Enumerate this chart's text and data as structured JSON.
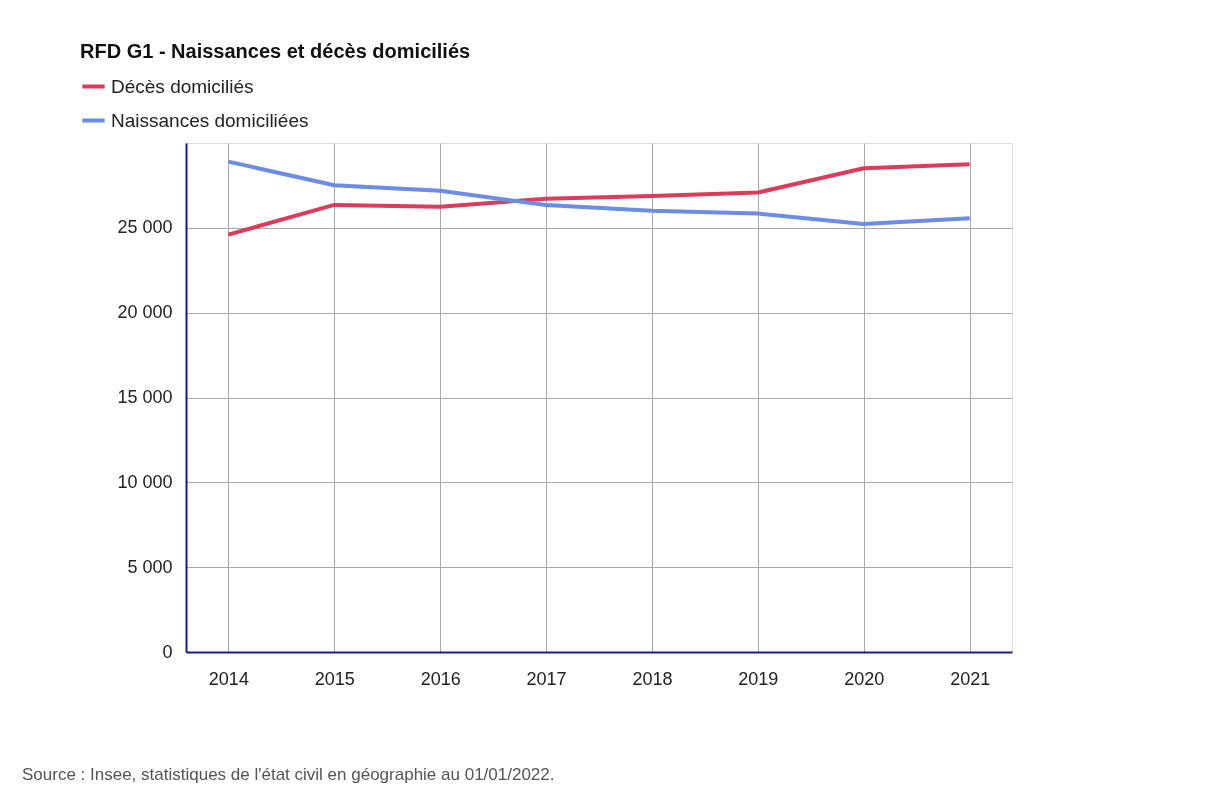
{
  "chart_data": {
    "type": "line",
    "title": "RFD G1 - Naissances et décès domiciliés",
    "categories": [
      "2014",
      "2015",
      "2016",
      "2017",
      "2018",
      "2019",
      "2020",
      "2021"
    ],
    "series": [
      {
        "name": "Décès domiciliés",
        "color": "#dc3c5a",
        "values": [
          24600,
          26350,
          26240,
          26720,
          26880,
          27080,
          28510,
          28750
        ]
      },
      {
        "name": "Naissances domiciliées",
        "color": "#6c8ce6",
        "values": [
          28900,
          27510,
          27180,
          26340,
          26000,
          25840,
          25220,
          25570
        ]
      }
    ],
    "ylim": [
      0,
      30000
    ],
    "yticks": [
      0,
      {
        "value": 5000,
        "label": "5 000"
      },
      {
        "value": 10000,
        "label": "10 000"
      },
      {
        "value": 15000,
        "label": "15 000"
      },
      {
        "value": 20000,
        "label": "20 000"
      },
      {
        "value": 25000,
        "label": "25 000"
      }
    ],
    "grid": true,
    "legend": "top left",
    "marker": "none",
    "line_style": "solid",
    "annotations": [
      "Source : Insee, statistiques de l'état civil en géographie au 01/01/2022."
    ]
  }
}
